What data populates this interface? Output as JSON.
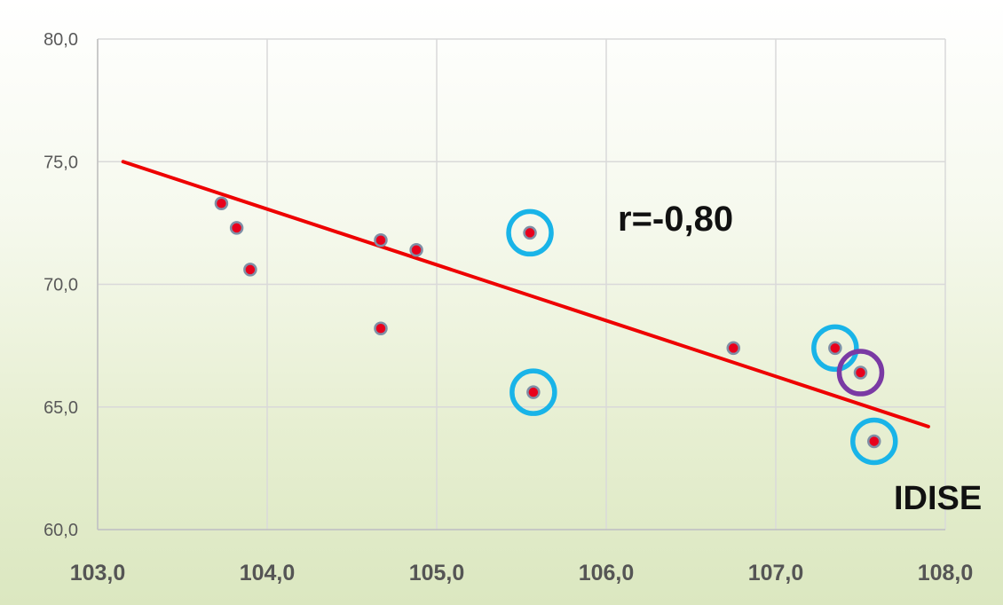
{
  "chart_data": {
    "type": "scatter",
    "title": "",
    "xlabel": "",
    "ylabel": "",
    "xlim": [
      103,
      108
    ],
    "ylim": [
      60,
      80
    ],
    "x_ticks": [
      "103,0",
      "104,0",
      "105,0",
      "106,0",
      "107,0",
      "108,0"
    ],
    "y_ticks": [
      "60,0",
      "65,0",
      "70,0",
      "75,0",
      "80,0"
    ],
    "grid": true,
    "series": [
      {
        "points": [
          {
            "x": 103.73,
            "y": 73.3
          },
          {
            "x": 103.82,
            "y": 72.3
          },
          {
            "x": 103.9,
            "y": 70.6
          },
          {
            "x": 104.67,
            "y": 71.8
          },
          {
            "x": 104.67,
            "y": 68.2
          },
          {
            "x": 104.88,
            "y": 71.4
          },
          {
            "x": 105.55,
            "y": 72.1,
            "highlight": "blue"
          },
          {
            "x": 105.57,
            "y": 65.6,
            "highlight": "blue"
          },
          {
            "x": 106.75,
            "y": 67.4
          },
          {
            "x": 107.35,
            "y": 67.4,
            "highlight": "blue"
          },
          {
            "x": 107.5,
            "y": 66.4,
            "highlight": "purple"
          },
          {
            "x": 107.58,
            "y": 63.6,
            "highlight": "blue"
          }
        ]
      }
    ],
    "trendline": {
      "x1": 103.15,
      "y1": 75.0,
      "x2": 107.9,
      "y2": 64.2
    },
    "annotations": {
      "correlation": "r=-0,80",
      "label": "IDISE"
    },
    "colors": {
      "point_fill": "#e8001c",
      "point_stroke": "#7f8fa6",
      "trendline": "#ee0000",
      "highlight_blue": "#19b4e8",
      "highlight_purple": "#7a3aa4",
      "grid": "#d9d9d9"
    }
  }
}
